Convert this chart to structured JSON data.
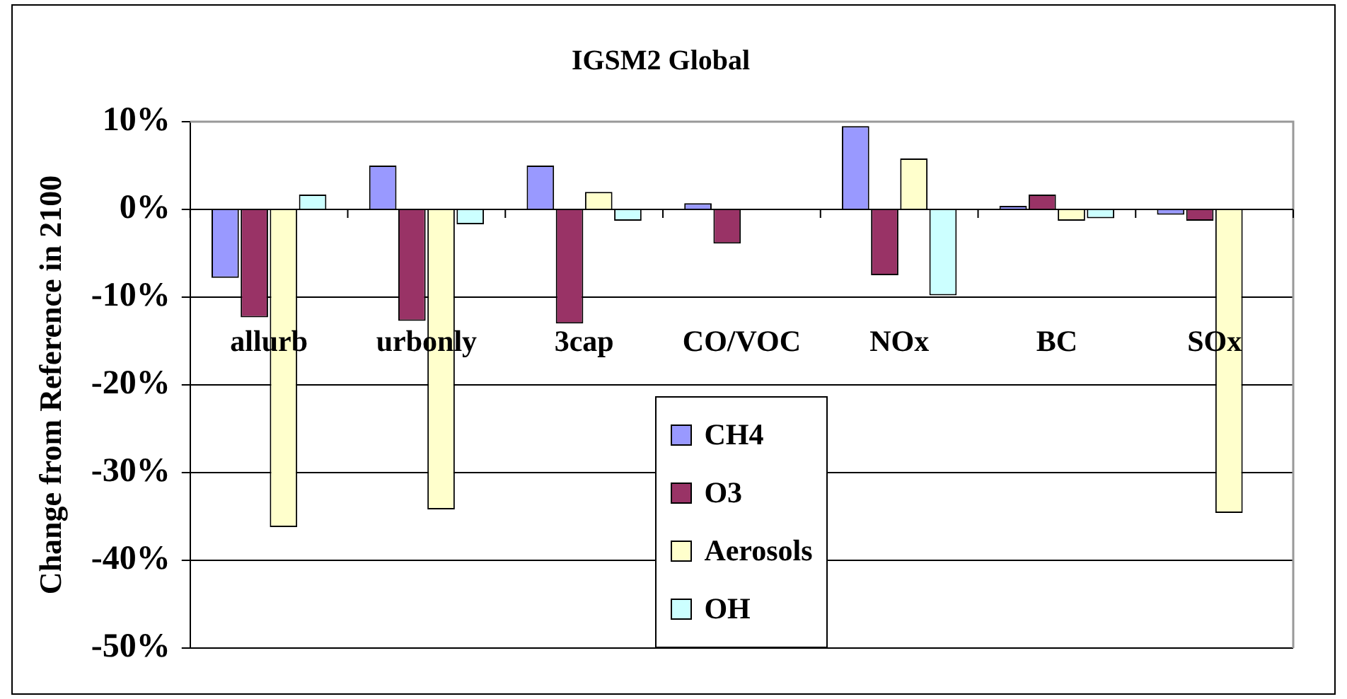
{
  "chart_data": {
    "type": "bar",
    "title": "IGSM2 Global",
    "ylabel": "Change from Reference in 2100",
    "categories": [
      "allurb",
      "urbonly",
      "3cap",
      "CO/VOC",
      "NOx",
      "BC",
      "SOx"
    ],
    "series": [
      {
        "name": "CH4",
        "color": "#9999ff",
        "values": [
          -7.8,
          5.0,
          5.0,
          0.7,
          9.5,
          0.4,
          -0.6
        ]
      },
      {
        "name": "O3",
        "color": "#993366",
        "values": [
          -12.3,
          -12.7,
          -13.0,
          -3.9,
          -7.5,
          1.7,
          -1.3
        ]
      },
      {
        "name": "Aerosols",
        "color": "#ffffcc",
        "values": [
          -36.2,
          -34.2,
          2.0,
          0,
          5.8,
          -1.3,
          -34.6
        ]
      },
      {
        "name": "OH",
        "color": "#ccffff",
        "values": [
          1.7,
          -1.7,
          -1.3,
          0,
          -9.8,
          -1.0,
          0
        ]
      }
    ],
    "ylim": [
      -50,
      10
    ],
    "yticks": [
      {
        "value": -50,
        "label": "-50%"
      },
      {
        "value": -40,
        "label": "-40%"
      },
      {
        "value": -30,
        "label": "-30%"
      },
      {
        "value": -20,
        "label": "-20%"
      },
      {
        "value": -10,
        "label": "-10%"
      },
      {
        "value": 0,
        "label": "0%"
      },
      {
        "value": 10,
        "label": "10%"
      }
    ],
    "grid": "y",
    "legend": "bottom"
  }
}
